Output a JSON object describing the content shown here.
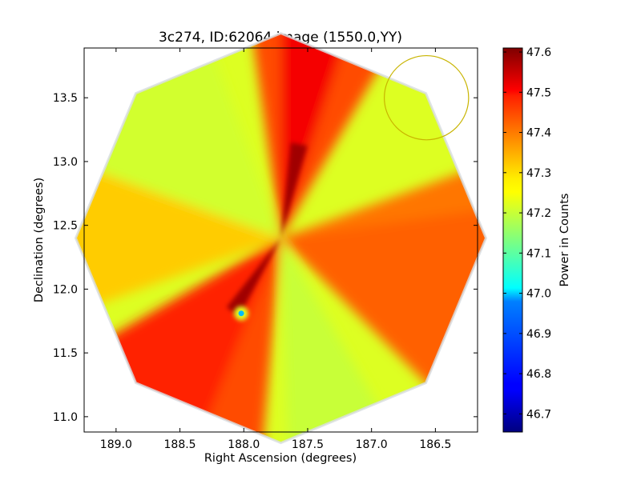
{
  "chart_data": {
    "type": "heatmap",
    "title": "3c274, ID:62064 image (1550.0,YY)",
    "xlabel": "Right Ascension (degrees)",
    "ylabel": "Declination (degrees)",
    "colorbar_label": "Power in Counts",
    "xlim": [
      189.25,
      186.17
    ],
    "ylim": [
      10.88,
      13.89
    ],
    "x_ticks": [
      {
        "value": 189.0,
        "label": "189.0"
      },
      {
        "value": 188.5,
        "label": "188.5"
      },
      {
        "value": 188.0,
        "label": "188.0"
      },
      {
        "value": 187.5,
        "label": "187.5"
      },
      {
        "value": 187.0,
        "label": "187.0"
      },
      {
        "value": 186.5,
        "label": "186.5"
      }
    ],
    "y_ticks": [
      {
        "value": 11.0,
        "label": "11.0"
      },
      {
        "value": 11.5,
        "label": "11.5"
      },
      {
        "value": 12.0,
        "label": "12.0"
      },
      {
        "value": 12.5,
        "label": "12.5"
      },
      {
        "value": 13.0,
        "label": "13.0"
      },
      {
        "value": 13.5,
        "label": "13.5"
      }
    ],
    "colorbar_range": [
      46.655,
      47.61
    ],
    "colorbar_ticks": [
      {
        "value": 46.7,
        "label": "46.7"
      },
      {
        "value": 46.8,
        "label": "46.8"
      },
      {
        "value": 46.9,
        "label": "46.9"
      },
      {
        "value": 47.0,
        "label": "47.0"
      },
      {
        "value": 47.1,
        "label": "47.1"
      },
      {
        "value": 47.2,
        "label": "47.2"
      },
      {
        "value": 47.3,
        "label": "47.3"
      },
      {
        "value": 47.4,
        "label": "47.4"
      },
      {
        "value": 47.5,
        "label": "47.5"
      },
      {
        "value": 47.6,
        "label": "47.6"
      }
    ],
    "colormap": "jet",
    "map_center": {
      "ra": 187.71,
      "dec": 12.4
    },
    "map_footprint": "octagon",
    "typical_values": {
      "background": 47.22,
      "bright_wedges": 47.42,
      "peak": 47.58,
      "dip": 46.95
    },
    "dip_location": {
      "ra": 188.02,
      "dec": 11.81
    },
    "beam_circle": {
      "ra": 186.57,
      "dec": 13.5,
      "radius_deg": 0.33,
      "color": "#c8b400"
    }
  }
}
